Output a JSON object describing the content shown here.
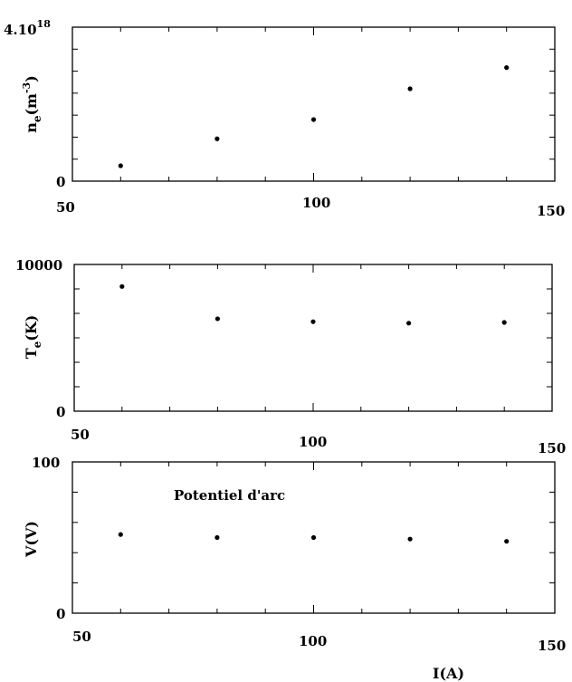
{
  "chart_data": [
    {
      "type": "scatter",
      "ylabel_base": "n",
      "ylabel_sub": "e",
      "ylabel_tail_open": "(m",
      "ylabel_sup": "-3",
      "ylabel_tail_close": ")",
      "xlim": [
        50,
        150
      ],
      "ylim": [
        0,
        4e+18
      ],
      "x_ticks": [
        "50",
        "100",
        "150"
      ],
      "y_top_label_base": "4.10",
      "y_top_label_sup": "18",
      "y_bottom_label": "0",
      "series": [
        {
          "x": [
            60,
            80,
            100,
            120,
            140
          ],
          "y": [
            4e+17,
            1.1e+18,
            1.6e+18,
            2.4e+18,
            2.95e+18
          ]
        }
      ]
    },
    {
      "type": "scatter",
      "ylabel_base": "T",
      "ylabel_sub": "e",
      "ylabel_tail": "(K)",
      "xlim": [
        50,
        150
      ],
      "ylim": [
        0,
        10000
      ],
      "x_ticks": [
        "50",
        "100",
        "150"
      ],
      "y_top_label": "10000",
      "y_bottom_label": "0",
      "series": [
        {
          "x": [
            60,
            80,
            100,
            120,
            140
          ],
          "y": [
            8500,
            6300,
            6100,
            6000,
            6050
          ]
        }
      ]
    },
    {
      "type": "scatter",
      "ylabel": "V(V)",
      "xlabel": "I(A)",
      "annotation": "Potentiel d'arc",
      "xlim": [
        50,
        150
      ],
      "ylim": [
        0,
        100
      ],
      "x_ticks": [
        "50",
        "100",
        "150"
      ],
      "y_top_label": "100",
      "y_bottom_label": "0",
      "series": [
        {
          "x": [
            60,
            80,
            100,
            120,
            140
          ],
          "y": [
            52,
            50,
            50,
            49,
            47.5
          ]
        }
      ]
    }
  ]
}
